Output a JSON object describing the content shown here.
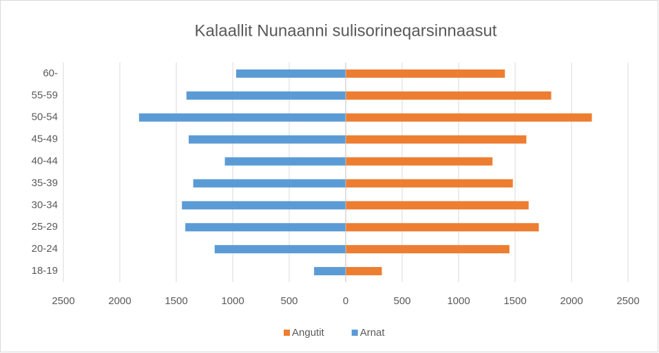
{
  "chart_data": {
    "type": "bar",
    "orientation": "horizontal",
    "title": "Kalaallit Nunaanni sulisorineqarsinnaasut",
    "categories": [
      "60-",
      "55-59",
      "50-54",
      "45-49",
      "40-44",
      "35-39",
      "30-34",
      "25-29",
      "20-24",
      "18-19"
    ],
    "series": [
      {
        "name": "Angutit",
        "color": "#ed7d31",
        "values": [
          1410,
          1820,
          2180,
          1600,
          1300,
          1480,
          1620,
          1710,
          1450,
          320
        ]
      },
      {
        "name": "Arnat",
        "color": "#5b9bd5",
        "values": [
          -970,
          -1410,
          -1830,
          -1390,
          -1070,
          -1350,
          -1450,
          -1420,
          -1160,
          -280
        ]
      }
    ],
    "xlim": [
      -2500,
      2500
    ],
    "xticks": [
      {
        "value": -2500,
        "label": "2500"
      },
      {
        "value": -2000,
        "label": "2000"
      },
      {
        "value": -1500,
        "label": "1500"
      },
      {
        "value": -1000,
        "label": "1000"
      },
      {
        "value": -500,
        "label": "500"
      },
      0,
      500,
      1000,
      1500,
      2000,
      2500
    ],
    "grid": true,
    "legend": "bottom"
  }
}
